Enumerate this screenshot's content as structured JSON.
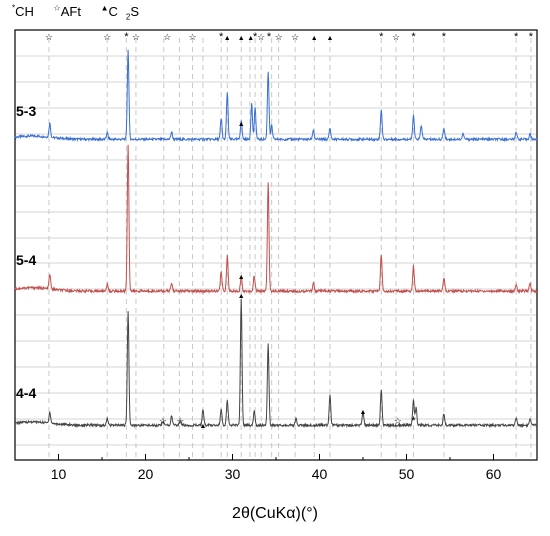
{
  "legend": {
    "ch_symbol": "*",
    "ch_label": "CH",
    "aft_symbol": "☆",
    "aft_label": "AFt",
    "c2s_symbol": "▲",
    "c2s_label_main": "C",
    "c2s_label_sub": "2",
    "c2s_label_end": "S"
  },
  "chart_data": {
    "type": "line",
    "xlabel": "2θ(CuKα)(°)",
    "xlim": [
      5,
      65
    ],
    "x_ticks": [
      10,
      20,
      30,
      40,
      50,
      60
    ],
    "y_ticks_shown": false,
    "grid": "horizontal only, dashed vertical reference lines at marked peaks",
    "series": [
      {
        "name": "5-3",
        "color": "#3a6fd1",
        "baseline": 0.5,
        "peaks": [
          {
            "x": 9.0,
            "h": 1.5
          },
          {
            "x": 15.6,
            "h": 0.7
          },
          {
            "x": 18.0,
            "h": 9.5
          },
          {
            "x": 23.0,
            "h": 0.8
          },
          {
            "x": 28.7,
            "h": 2.2
          },
          {
            "x": 29.4,
            "h": 5.0
          },
          {
            "x": 31.0,
            "h": 2.0
          },
          {
            "x": 32.2,
            "h": 3.8
          },
          {
            "x": 32.6,
            "h": 3.3
          },
          {
            "x": 34.1,
            "h": 7.2
          },
          {
            "x": 34.5,
            "h": 1.5
          },
          {
            "x": 39.3,
            "h": 1.0
          },
          {
            "x": 41.2,
            "h": 1.2
          },
          {
            "x": 47.1,
            "h": 3.2
          },
          {
            "x": 50.8,
            "h": 2.5
          },
          {
            "x": 51.7,
            "h": 1.5
          },
          {
            "x": 54.3,
            "h": 1.2
          },
          {
            "x": 56.5,
            "h": 0.6
          },
          {
            "x": 62.6,
            "h": 0.8
          },
          {
            "x": 64.2,
            "h": 0.6
          }
        ]
      },
      {
        "name": "5-4",
        "color": "#c0504d",
        "baseline": 0.5,
        "peaks": [
          {
            "x": 9.0,
            "h": 1.5
          },
          {
            "x": 15.6,
            "h": 0.7
          },
          {
            "x": 18.0,
            "h": 15.0
          },
          {
            "x": 23.0,
            "h": 0.8
          },
          {
            "x": 28.7,
            "h": 2.0
          },
          {
            "x": 29.4,
            "h": 3.6
          },
          {
            "x": 31.0,
            "h": 1.5
          },
          {
            "x": 32.5,
            "h": 1.6
          },
          {
            "x": 34.1,
            "h": 11.0
          },
          {
            "x": 39.3,
            "h": 0.8
          },
          {
            "x": 47.1,
            "h": 3.7
          },
          {
            "x": 50.8,
            "h": 2.6
          },
          {
            "x": 54.3,
            "h": 1.4
          },
          {
            "x": 62.6,
            "h": 0.7
          },
          {
            "x": 64.2,
            "h": 0.8
          }
        ]
      },
      {
        "name": "4-4",
        "color": "#444444",
        "baseline": 0.5,
        "peaks": [
          {
            "x": 9.0,
            "h": 1.2
          },
          {
            "x": 15.6,
            "h": 0.7
          },
          {
            "x": 18.0,
            "h": 12.0
          },
          {
            "x": 22.0,
            "h": 0.4
          },
          {
            "x": 23.0,
            "h": 1.0
          },
          {
            "x": 24.0,
            "h": 0.5
          },
          {
            "x": 26.6,
            "h": 1.6
          },
          {
            "x": 28.7,
            "h": 1.7
          },
          {
            "x": 29.4,
            "h": 2.7
          },
          {
            "x": 31.0,
            "h": 13.2
          },
          {
            "x": 32.5,
            "h": 1.5
          },
          {
            "x": 34.1,
            "h": 8.5
          },
          {
            "x": 37.3,
            "h": 0.7
          },
          {
            "x": 41.2,
            "h": 3.2
          },
          {
            "x": 45.0,
            "h": 1.3
          },
          {
            "x": 47.1,
            "h": 3.8
          },
          {
            "x": 50.8,
            "h": 2.8
          },
          {
            "x": 51.1,
            "h": 1.8
          },
          {
            "x": 54.3,
            "h": 1.2
          },
          {
            "x": 62.6,
            "h": 0.8
          },
          {
            "x": 64.2,
            "h": 0.6
          }
        ]
      }
    ],
    "reference_lines_x": [
      8.9,
      15.6,
      17.8,
      18.9,
      22.1,
      23.9,
      25.4,
      26.6,
      28.7,
      29.4,
      31.0,
      32.0,
      32.6,
      33.3,
      34.5,
      35.3,
      37.2,
      39.4,
      41.2,
      47.1,
      48.8,
      50.8,
      54.3,
      62.6,
      64.3
    ],
    "top_markers": [
      {
        "x": 8.9,
        "symbol": "☆"
      },
      {
        "x": 15.6,
        "symbol": "☆"
      },
      {
        "x": 17.8,
        "symbol": "*"
      },
      {
        "x": 18.9,
        "symbol": "☆"
      },
      {
        "x": 22.5,
        "symbol": "☆"
      },
      {
        "x": 25.4,
        "symbol": "☆"
      },
      {
        "x": 28.7,
        "symbol": "*"
      },
      {
        "x": 29.4,
        "symbol": "▲"
      },
      {
        "x": 31.0,
        "symbol": "▲"
      },
      {
        "x": 32.1,
        "symbol": "▲"
      },
      {
        "x": 32.6,
        "symbol": "*"
      },
      {
        "x": 33.3,
        "symbol": "☆"
      },
      {
        "x": 34.2,
        "symbol": "*"
      },
      {
        "x": 35.3,
        "symbol": "☆"
      },
      {
        "x": 37.2,
        "symbol": "☆"
      },
      {
        "x": 39.4,
        "symbol": "▲"
      },
      {
        "x": 41.2,
        "symbol": "▲"
      },
      {
        "x": 47.1,
        "symbol": "*"
      },
      {
        "x": 48.8,
        "symbol": "☆"
      },
      {
        "x": 50.8,
        "symbol": "*"
      },
      {
        "x": 54.3,
        "symbol": "*"
      },
      {
        "x": 62.6,
        "symbol": "*"
      },
      {
        "x": 64.3,
        "symbol": "*"
      }
    ],
    "trace_markers": [
      {
        "series": "5-3",
        "x": 31.0,
        "symbol": "▲"
      },
      {
        "series": "5-4",
        "x": 31.0,
        "symbol": "▲"
      },
      {
        "series": "4-4",
        "x": 22.0,
        "symbol": "☆"
      },
      {
        "series": "4-4",
        "x": 24.0,
        "symbol": "☆"
      },
      {
        "series": "4-4",
        "x": 26.6,
        "symbol": "▲"
      },
      {
        "series": "4-4",
        "x": 31.0,
        "symbol": "▲"
      },
      {
        "series": "4-4",
        "x": 45.0,
        "symbol": "▲"
      },
      {
        "series": "4-4",
        "x": 49.0,
        "symbol": "☆"
      },
      {
        "series": "4-4",
        "x": 50.8,
        "symbol": "*"
      }
    ]
  }
}
